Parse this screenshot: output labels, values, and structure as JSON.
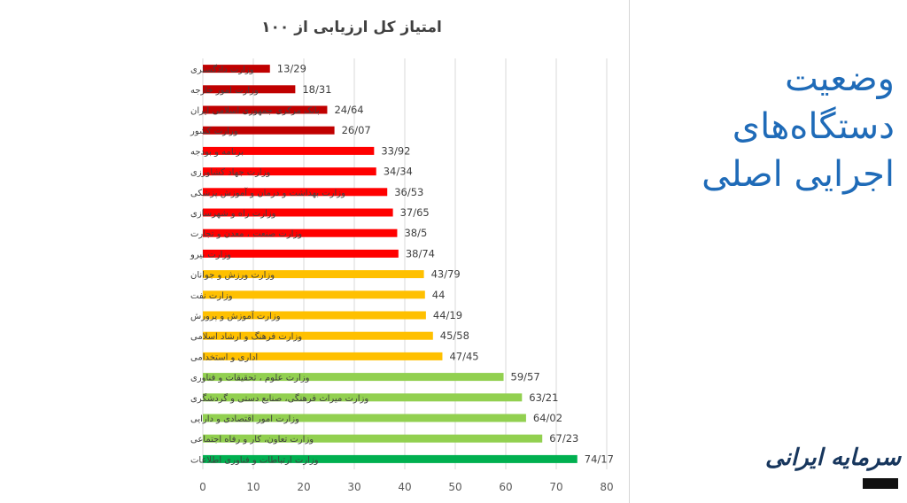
{
  "chart_data": {
    "type": "bar",
    "orientation": "horizontal",
    "title": "امتیاز کل ارزیابی از ۱۰۰",
    "xlim": [
      0,
      80
    ],
    "xticks": [
      0,
      10,
      20,
      30,
      40,
      50,
      60,
      70,
      80
    ],
    "grid": true,
    "categories": [
      "وزارت دادگستری",
      "وزارت امور خارجه",
      "بانک مرکزی جمهوری اسلامی ایران",
      "وزارت کشور",
      "برنامه و بودجه",
      "وزارت جهاد کشاورزی",
      "وزارت بهداشت و درمان و آموزش پزشکی",
      "وزارت راه و شهرسازی",
      "وزارت صنعت ، معدن و تجارت",
      "وزارت نیرو",
      "وزارت ورزش و جوانان",
      "وزارت نفت",
      "وزارت آموزش و پرورش",
      "وزارت فرهنگ و ارشاد اسلامی",
      "اداری و استخدامی",
      "وزارت علوم ، تحقیقات و فناوری",
      "وزارت میراث فرهنگی، صنایع دستی و گردشگری",
      "وزارت امور اقتصادی و دارایی",
      "وزارت تعاون، کار و رفاه اجتماعی",
      "وزارت ارتباطات و فناوری اطلاعات"
    ],
    "values": [
      13.29,
      18.31,
      24.64,
      26.07,
      33.92,
      34.34,
      36.53,
      37.65,
      38.5,
      38.74,
      43.79,
      44,
      44.19,
      45.58,
      47.45,
      59.57,
      63.21,
      64.02,
      67.23,
      74.17
    ],
    "value_labels": [
      "13/29",
      "18/31",
      "24/64",
      "26/07",
      "33/92",
      "34/34",
      "36/53",
      "37/65",
      "38/5",
      "38/74",
      "43/79",
      "44",
      "44/19",
      "45/58",
      "47/45",
      "59/57",
      "63/21",
      "64/02",
      "67/23",
      "74/17"
    ],
    "colors": [
      "#c00000",
      "#c00000",
      "#c00000",
      "#c00000",
      "#ff0000",
      "#ff0000",
      "#ff0000",
      "#ff0000",
      "#ff0000",
      "#ff0000",
      "#ffc000",
      "#ffc000",
      "#ffc000",
      "#ffc000",
      "#ffc000",
      "#92d050",
      "#92d050",
      "#92d050",
      "#92d050",
      "#00b050"
    ]
  },
  "side_title": {
    "line1": "وضعیت",
    "line2": "دستگاه‌های",
    "line3": "اجرایی اصلی",
    "color": "#1f6bb8"
  },
  "logo": {
    "text": "سرمایه ایرانی",
    "icon": "sarmaye-irani-logo"
  }
}
